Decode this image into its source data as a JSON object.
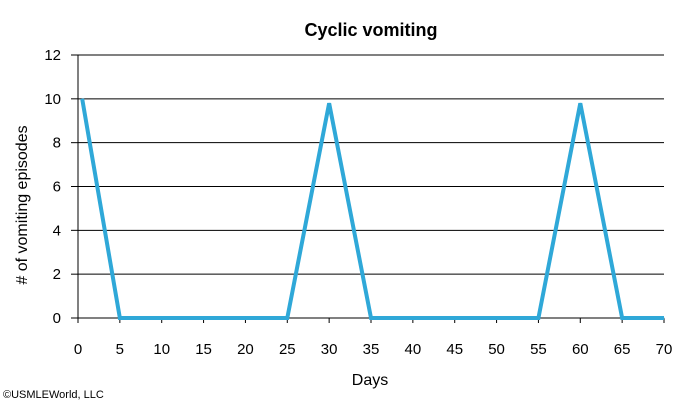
{
  "chart_data": {
    "type": "line",
    "title": "Cyclic vomiting",
    "xlabel": "Days",
    "ylabel": "# of vomiting episodes",
    "xlim": [
      0,
      70
    ],
    "ylim": [
      0,
      12
    ],
    "xticks": [
      "0",
      "5",
      "10",
      "15",
      "20",
      "25",
      "30",
      "35",
      "40",
      "45",
      "50",
      "55",
      "60",
      "65",
      "70"
    ],
    "yticks": [
      "0",
      "2",
      "4",
      "6",
      "8",
      "10",
      "12"
    ],
    "grid": "horizontal",
    "series": [
      {
        "color": "#2fa8d8",
        "x": [
          0.5,
          5,
          25,
          30,
          35,
          55,
          60,
          65,
          70
        ],
        "y": [
          10,
          0,
          0,
          9.8,
          0,
          0,
          9.8,
          0,
          0
        ]
      }
    ]
  },
  "copyright": "©USMLEWorld, LLC"
}
